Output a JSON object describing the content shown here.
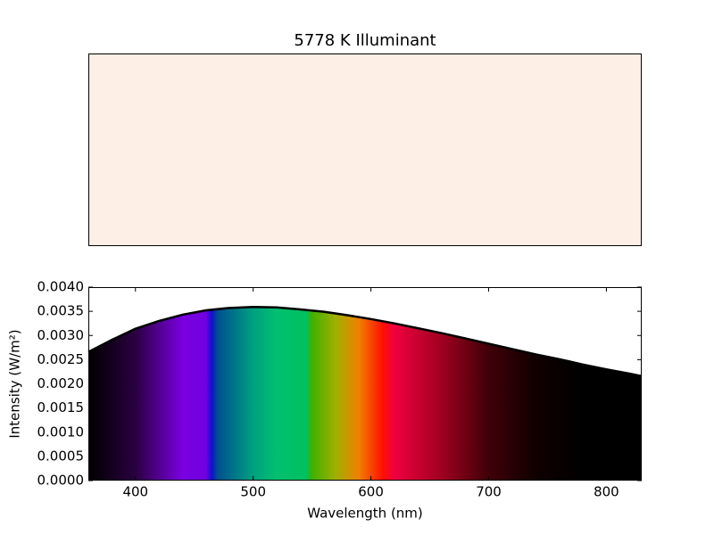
{
  "chart_data": [
    {
      "type": "swatch",
      "title": "5778 K Illuminant",
      "color": "#fdefe6"
    },
    {
      "type": "area",
      "xlabel": "Wavelength (nm)",
      "ylabel": "Intensity (W/m²)",
      "x": [
        360,
        380,
        400,
        420,
        440,
        460,
        480,
        500,
        520,
        540,
        560,
        580,
        600,
        620,
        640,
        660,
        680,
        700,
        720,
        740,
        760,
        780,
        800,
        820,
        830
      ],
      "values": [
        0.00266,
        0.00291,
        0.00314,
        0.0033,
        0.00343,
        0.00352,
        0.00357,
        0.00359,
        0.00358,
        0.00354,
        0.00349,
        0.00342,
        0.00334,
        0.00325,
        0.00315,
        0.00305,
        0.00294,
        0.00283,
        0.00272,
        0.00261,
        0.00251,
        0.0024,
        0.0023,
        0.00221,
        0.00216
      ],
      "color": "#000000",
      "xlim": [
        360,
        830
      ],
      "ylim": [
        0,
        0.004
      ],
      "xticks": [
        400,
        500,
        600,
        700,
        800
      ],
      "yticks": [
        {
          "value": 0,
          "label": "0.0000"
        },
        {
          "value": 0.0005,
          "label": "0.0005"
        },
        {
          "value": 0.001,
          "label": "0.0010"
        },
        {
          "value": 0.0015,
          "label": "0.0015"
        },
        {
          "value": 0.002,
          "label": "0.0020"
        },
        {
          "value": 0.0025,
          "label": "0.0025"
        },
        {
          "value": 0.003,
          "label": "0.0030"
        },
        {
          "value": 0.0035,
          "label": "0.0035"
        },
        {
          "value": 0.004,
          "label": "0.0040"
        }
      ]
    }
  ]
}
